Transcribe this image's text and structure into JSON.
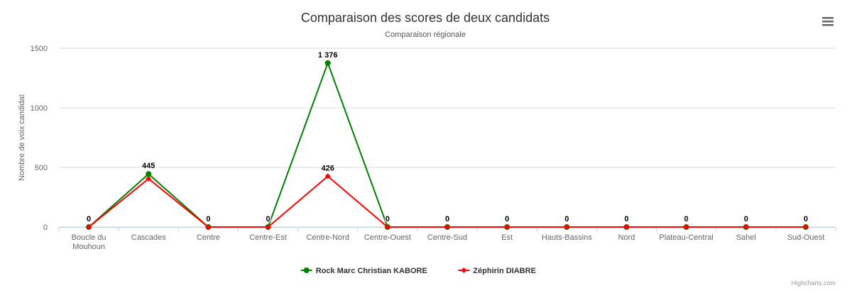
{
  "chart_data": {
    "type": "line",
    "title": "Comparaison des scores de deux candidats",
    "subtitle": "Comparaison régionale",
    "y_label": "Nombre de voix candidat",
    "categories": [
      "Boucle du Mouhoun",
      "Cascades",
      "Centre",
      "Centre-Est",
      "Centre-Nord",
      "Centre-Ouest",
      "Centre-Sud",
      "Est",
      "Hauts-Bassins",
      "Nord",
      "Plateau-Central",
      "Sahel",
      "Sud-Ouest"
    ],
    "series": [
      {
        "name": "Rock Marc Christian KABORE",
        "color": "#008000",
        "marker": "circle",
        "values": [
          0,
          445,
          0,
          0,
          1376,
          0,
          0,
          0,
          0,
          0,
          0,
          0,
          0
        ],
        "value_labels": [
          "0",
          "445",
          "0",
          "0",
          "1 376",
          "0",
          "0",
          "0",
          "0",
          "0",
          "0",
          "0",
          "0"
        ]
      },
      {
        "name": "Zéphirin DIABRE",
        "color": "#ff0000",
        "marker": "diamond",
        "values": [
          0,
          405,
          0,
          0,
          426,
          0,
          0,
          0,
          0,
          0,
          0,
          0,
          0
        ],
        "value_labels": [
          null,
          null,
          null,
          null,
          "426",
          null,
          null,
          null,
          null,
          null,
          null,
          null,
          null
        ]
      }
    ],
    "ylim": [
      0,
      1500
    ],
    "yticks": [
      0,
      500,
      1000,
      1500
    ],
    "grid": true,
    "credits": "Highcharts.com"
  }
}
